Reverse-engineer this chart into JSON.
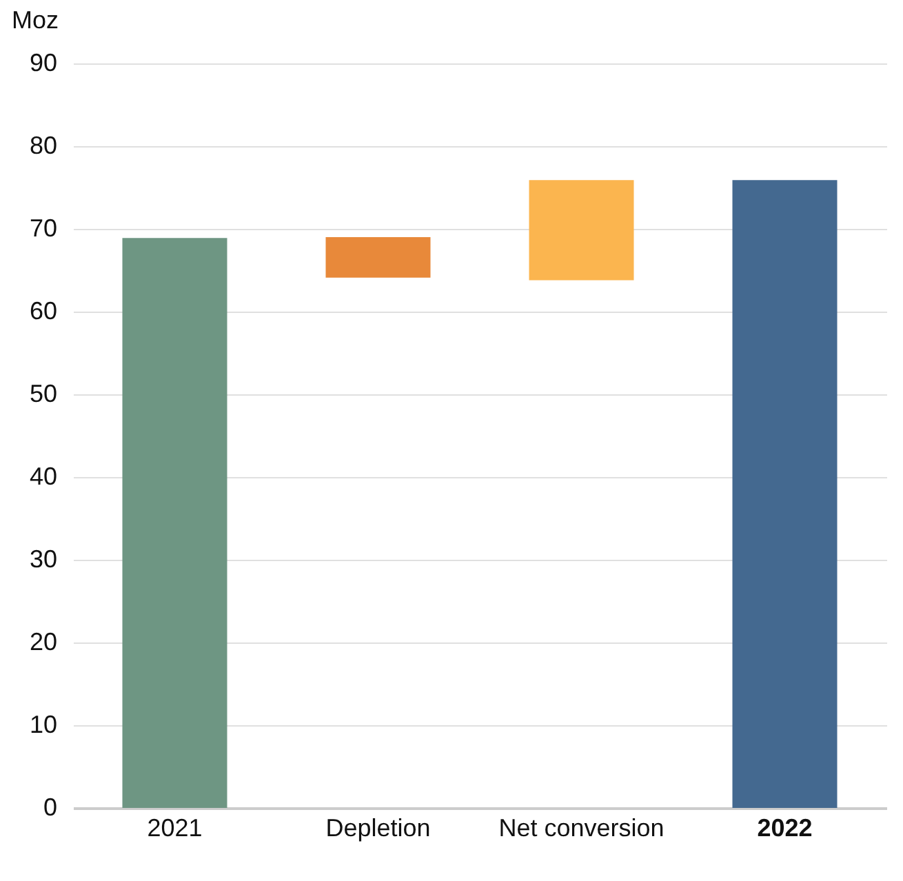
{
  "chart_data": {
    "type": "bar",
    "ylabel": "Moz",
    "categories": [
      "2021",
      "Depletion",
      "Net conversion",
      "2022"
    ],
    "values": [
      68.9,
      -4.9,
      12.1,
      75.9
    ],
    "base": [
      0,
      69.0,
      63.8,
      0
    ],
    "colors": [
      "#6e9683",
      "#e8893a",
      "#fbb54f",
      "#446990"
    ],
    "ylim": [
      0,
      90
    ],
    "yticks": [
      0,
      10,
      20,
      30,
      40,
      50,
      60,
      70,
      80,
      90
    ],
    "grid": "y",
    "legend": false
  }
}
